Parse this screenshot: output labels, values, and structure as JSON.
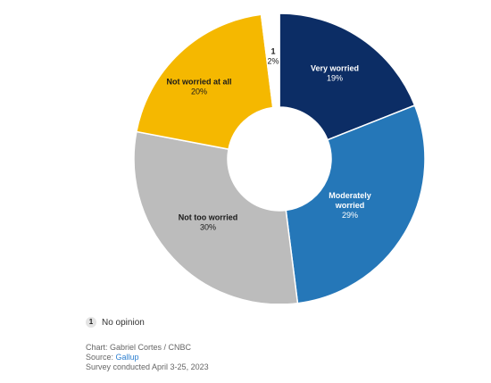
{
  "chart_data": {
    "type": "pie",
    "variant": "donut",
    "categories": [
      "Very worried",
      "Moderately worried",
      "Not too worried",
      "Not worried at all",
      "No opinion"
    ],
    "values": [
      19,
      29,
      30,
      20,
      2
    ],
    "labels": [
      {
        "lines": [
          "Very worried"
        ],
        "pct": "19%"
      },
      {
        "lines": [
          "Moderately",
          "worried"
        ],
        "pct": "29%"
      },
      {
        "lines": [
          "Not too worried"
        ],
        "pct": "30%"
      },
      {
        "lines": [
          "Not worried at all"
        ],
        "pct": "20%"
      },
      {
        "lines": [
          "1"
        ],
        "pct": "2%"
      }
    ],
    "colors": [
      "#0c2d65",
      "#2577b8",
      "#bcbcbc",
      "#f5b800",
      "#ffffff"
    ],
    "label_colors": [
      "#ffffff",
      "#ffffff",
      "#1a1a1a",
      "#1a1a1a",
      "#1a1a1a"
    ],
    "legend": {
      "key": "1",
      "label": "No opinion"
    }
  },
  "footer": {
    "chart_credit": "Chart: Gabriel Cortes / CNBC",
    "source_prefix": "Source: ",
    "source_name": "Gallup",
    "survey_note": "Survey conducted April 3-25, 2023"
  }
}
